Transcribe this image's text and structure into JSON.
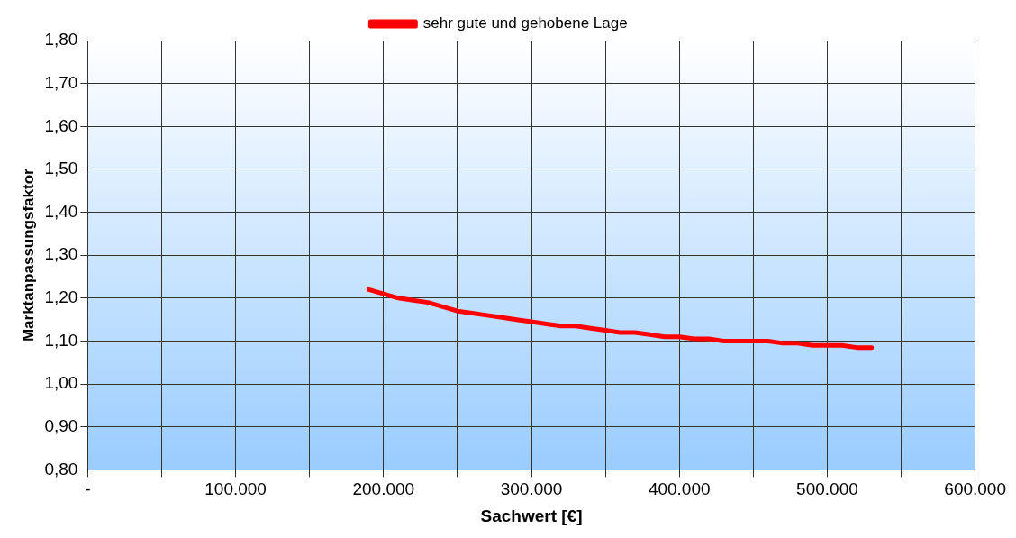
{
  "chart_data": {
    "type": "line",
    "xlabel": "Sachwert [€]",
    "ylabel": "Marktanpassungsfaktor",
    "x": [
      190000,
      200000,
      210000,
      220000,
      230000,
      240000,
      250000,
      260000,
      270000,
      280000,
      290000,
      300000,
      310000,
      320000,
      330000,
      340000,
      350000,
      360000,
      370000,
      380000,
      390000,
      400000,
      410000,
      420000,
      430000,
      440000,
      450000,
      460000,
      470000,
      480000,
      490000,
      500000,
      510000,
      520000,
      530000
    ],
    "series": [
      {
        "name": "sehr gute und gehobene Lage",
        "color": "#ff0000",
        "values": [
          1.22,
          1.21,
          1.2,
          1.195,
          1.19,
          1.18,
          1.17,
          1.165,
          1.16,
          1.155,
          1.15,
          1.145,
          1.14,
          1.135,
          1.135,
          1.13,
          1.125,
          1.12,
          1.12,
          1.115,
          1.11,
          1.11,
          1.105,
          1.105,
          1.1,
          1.1,
          1.1,
          1.1,
          1.095,
          1.095,
          1.09,
          1.09,
          1.09,
          1.085,
          1.085
        ]
      }
    ],
    "xlim": [
      0,
      600000
    ],
    "xticks": [
      {
        "value": 0,
        "label": "-"
      },
      {
        "value": 50000,
        "label": null
      },
      {
        "value": 100000,
        "label": "100.000"
      },
      {
        "value": 150000,
        "label": null
      },
      {
        "value": 200000,
        "label": "200.000"
      },
      {
        "value": 250000,
        "label": null
      },
      {
        "value": 300000,
        "label": "300.000"
      },
      {
        "value": 350000,
        "label": null
      },
      {
        "value": 400000,
        "label": "400.000"
      },
      {
        "value": 450000,
        "label": null
      },
      {
        "value": 500000,
        "label": "500.000"
      },
      {
        "value": 550000,
        "label": null
      },
      {
        "value": 600000,
        "label": "600.000"
      }
    ],
    "ylim": [
      0.8,
      1.8
    ],
    "yticks": [
      {
        "value": 0.8,
        "label": "0,80"
      },
      {
        "value": 0.9,
        "label": "0,90"
      },
      {
        "value": 1.0,
        "label": "1,00"
      },
      {
        "value": 1.1,
        "label": "1,10"
      },
      {
        "value": 1.2,
        "label": "1,20"
      },
      {
        "value": 1.3,
        "label": "1,30"
      },
      {
        "value": 1.4,
        "label": "1,40"
      },
      {
        "value": 1.5,
        "label": "1,50"
      },
      {
        "value": 1.6,
        "label": "1,60"
      },
      {
        "value": 1.7,
        "label": "1,70"
      },
      {
        "value": 1.8,
        "label": "1,80"
      }
    ],
    "grid": true,
    "legend": "top",
    "marker": "none",
    "line_style": "solid"
  }
}
